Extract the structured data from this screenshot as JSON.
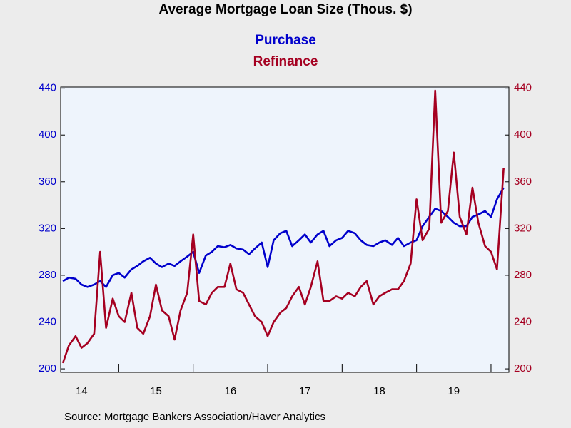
{
  "chart_data": {
    "type": "line",
    "title": "Average Mortgage Loan Size (Thous. $)",
    "source": "Source:  Mortgage Bankers Association/Haver Analytics",
    "x": [
      2014.25,
      2014.33,
      2014.42,
      2014.5,
      2014.58,
      2014.67,
      2014.75,
      2014.83,
      2014.92,
      2015.0,
      2015.08,
      2015.17,
      2015.25,
      2015.33,
      2015.42,
      2015.5,
      2015.58,
      2015.67,
      2015.75,
      2015.83,
      2015.92,
      2016.0,
      2016.08,
      2016.17,
      2016.25,
      2016.33,
      2016.42,
      2016.5,
      2016.58,
      2016.67,
      2016.75,
      2016.83,
      2016.92,
      2017.0,
      2017.08,
      2017.17,
      2017.25,
      2017.33,
      2017.42,
      2017.5,
      2017.58,
      2017.67,
      2017.75,
      2017.83,
      2017.92,
      2018.0,
      2018.08,
      2018.17,
      2018.25,
      2018.33,
      2018.42,
      2018.5,
      2018.58,
      2018.67,
      2018.75,
      2018.83,
      2018.92,
      2019.0,
      2019.08,
      2019.17,
      2019.25,
      2019.33,
      2019.42,
      2019.5,
      2019.58,
      2019.67,
      2019.75,
      2019.83,
      2019.92,
      2020.0,
      2020.08,
      2020.17
    ],
    "series": [
      {
        "name": "Purchase",
        "color": "#0000cc",
        "axis": "y",
        "values": [
          275,
          278,
          277,
          272,
          270,
          272,
          275,
          270,
          280,
          282,
          278,
          285,
          288,
          292,
          295,
          290,
          287,
          290,
          288,
          292,
          296,
          300,
          282,
          297,
          300,
          305,
          304,
          306,
          303,
          302,
          298,
          303,
          308,
          287,
          310,
          316,
          318,
          305,
          310,
          315,
          308,
          315,
          318,
          305,
          310,
          312,
          318,
          316,
          310,
          306,
          305,
          308,
          310,
          306,
          312,
          305,
          308,
          310,
          322,
          330,
          337,
          335,
          330,
          325,
          322,
          322,
          330,
          332,
          335,
          330,
          345,
          355
        ]
      },
      {
        "name": "Refinance",
        "color": "#a50021",
        "axis": "y2",
        "values": [
          205,
          220,
          228,
          218,
          222,
          230,
          300,
          235,
          260,
          245,
          240,
          265,
          235,
          230,
          245,
          272,
          250,
          245,
          225,
          250,
          265,
          315,
          258,
          255,
          265,
          270,
          270,
          290,
          268,
          265,
          255,
          245,
          240,
          228,
          240,
          248,
          252,
          262,
          270,
          255,
          270,
          292,
          258,
          258,
          262,
          260,
          265,
          262,
          270,
          275,
          255,
          262,
          265,
          268,
          268,
          275,
          290,
          345,
          310,
          320,
          438,
          325,
          335,
          385,
          330,
          315,
          355,
          325,
          305,
          300,
          285,
          372
        ]
      }
    ],
    "xlim": [
      2014.22,
      2020.24
    ],
    "xticks": [
      {
        "value": 2014.5,
        "label": "14"
      },
      {
        "value": 2015.5,
        "label": "15"
      },
      {
        "value": 2016.5,
        "label": "16"
      },
      {
        "value": 2017.5,
        "label": "17"
      },
      {
        "value": 2018.5,
        "label": "18"
      },
      {
        "value": 2019.5,
        "label": "19"
      }
    ],
    "xtick_marks": [
      2015,
      2016,
      2017,
      2018,
      2019,
      2020
    ],
    "ylim": [
      197,
      441
    ],
    "yticks": [
      200,
      240,
      280,
      320,
      360,
      400,
      440
    ],
    "y2lim": [
      197,
      441
    ],
    "y2ticks": [
      200,
      240,
      280,
      320,
      360,
      400,
      440
    ]
  }
}
